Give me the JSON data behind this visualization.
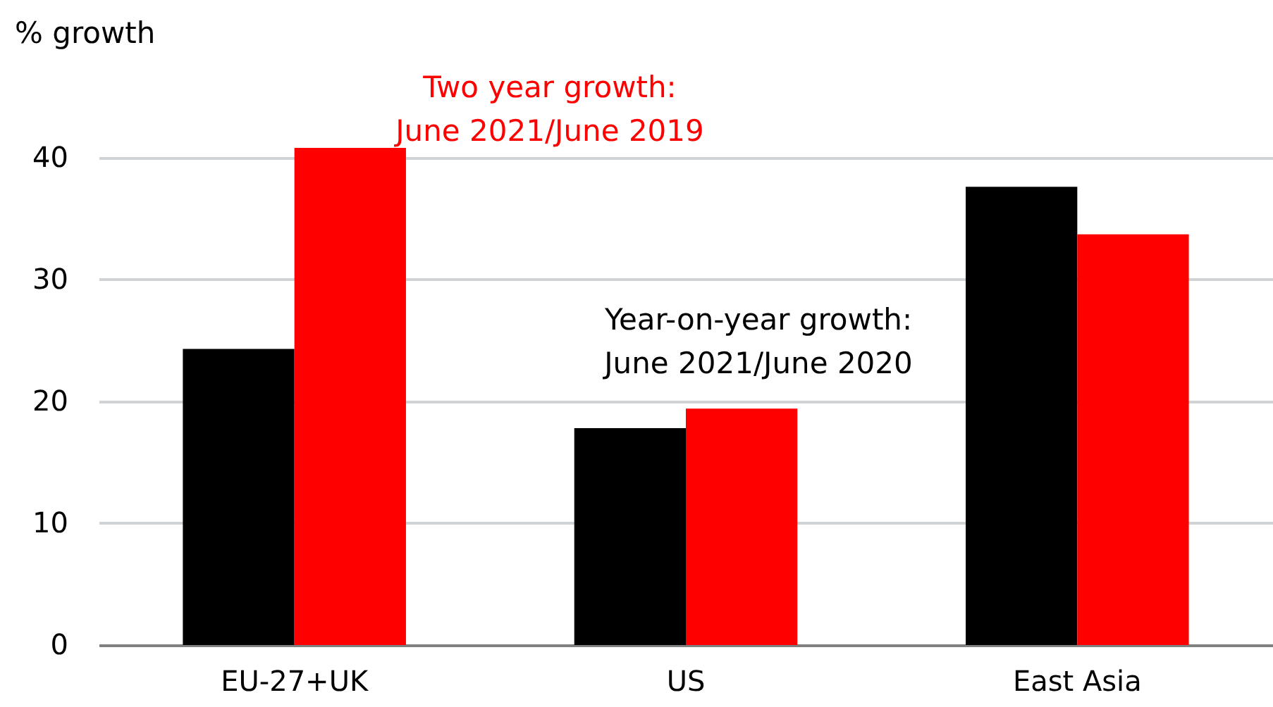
{
  "chart_data": {
    "type": "bar",
    "ylabel": "% growth",
    "categories": [
      "EU-27+UK",
      "US",
      "East Asia"
    ],
    "series": [
      {
        "name": "Year-on-year growth: June 2021/June 2020",
        "color": "#000000",
        "values": [
          24.3,
          17.8,
          37.6
        ]
      },
      {
        "name": "Two year growth: June 2021/June 2019",
        "color": "#ff0000",
        "values": [
          40.8,
          19.4,
          33.7
        ]
      }
    ],
    "ylim": [
      0,
      40.8
    ],
    "yticks": [
      0,
      10,
      20,
      30,
      40
    ],
    "grid": "y",
    "legend": false
  }
}
